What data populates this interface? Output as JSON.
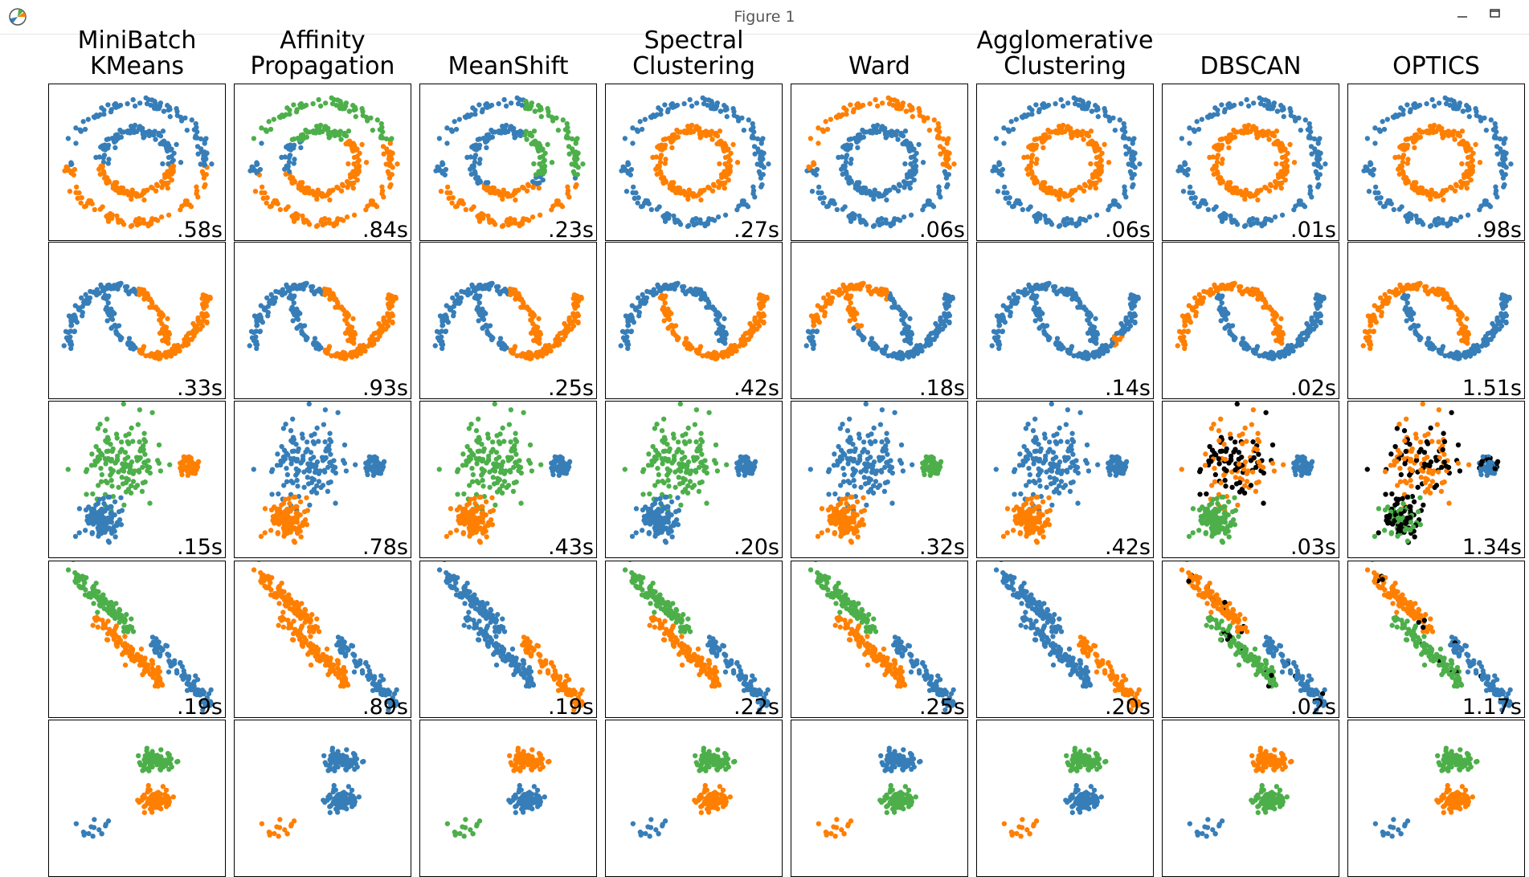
{
  "window": {
    "title": "Figure 1"
  },
  "colors": {
    "c0": "#377eb8",
    "c1": "#ff7f00",
    "c2": "#4daf4a",
    "c3": "#f781bf",
    "c4": "#a65628",
    "c5": "#984ea3",
    "noise": "#000000"
  },
  "algorithms": [
    {
      "title": "MiniBatch\nKMeans",
      "times": [
        ".58s",
        ".33s",
        ".15s",
        ".19s",
        ""
      ]
    },
    {
      "title": "Affinity\nPropagation",
      "times": [
        ".84s",
        ".93s",
        ".78s",
        ".89s",
        ""
      ]
    },
    {
      "title": "MeanShift",
      "times": [
        ".23s",
        ".25s",
        ".43s",
        ".19s",
        ""
      ]
    },
    {
      "title": "Spectral\nClustering",
      "times": [
        ".27s",
        ".42s",
        ".20s",
        ".22s",
        ""
      ]
    },
    {
      "title": "Ward",
      "times": [
        ".06s",
        ".18s",
        ".32s",
        ".25s",
        ""
      ]
    },
    {
      "title": "Agglomerative\nClustering",
      "times": [
        ".06s",
        ".14s",
        ".42s",
        ".20s",
        ""
      ]
    },
    {
      "title": "DBSCAN",
      "times": [
        ".01s",
        ".02s",
        ".03s",
        ".02s",
        ""
      ]
    },
    {
      "title": "OPTICS",
      "times": [
        ".98s",
        "1.51s",
        "1.34s",
        "1.17s",
        ""
      ]
    }
  ],
  "datasets": [
    "noisy_circles",
    "noisy_moons",
    "varied",
    "aniso",
    "blobs"
  ],
  "chart_data": {
    "type": "scatter",
    "grid": false,
    "rows": 5,
    "columns": 8,
    "row_datasets": [
      "noisy_circles",
      "noisy_moons",
      "varied",
      "aniso",
      "blobs"
    ],
    "column_titles": [
      "MiniBatch KMeans",
      "Affinity Propagation",
      "MeanShift",
      "Spectral Clustering",
      "Ward",
      "Agglomerative Clustering",
      "DBSCAN",
      "OPTICS"
    ],
    "timing_labels": [
      [
        ".58s",
        ".84s",
        ".23s",
        ".27s",
        ".06s",
        ".06s",
        ".01s",
        ".98s"
      ],
      [
        ".33s",
        ".93s",
        ".25s",
        ".42s",
        ".18s",
        ".14s",
        ".02s",
        "1.51s"
      ],
      [
        ".15s",
        ".78s",
        ".43s",
        ".20s",
        ".32s",
        ".42s",
        ".03s",
        "1.34s"
      ],
      [
        ".19s",
        ".89s",
        ".19s",
        ".22s",
        ".25s",
        ".20s",
        ".02s",
        "1.17s"
      ]
    ]
  }
}
